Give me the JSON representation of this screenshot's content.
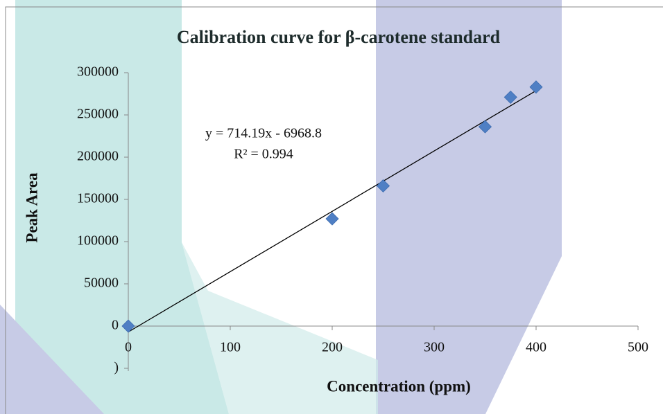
{
  "chart_data": {
    "type": "scatter",
    "title": "Calibration curve for β-carotene standard",
    "x_label": "Concentration (ppm)",
    "y_label": "Peak Area",
    "x": [
      0,
      200,
      250,
      350,
      375,
      400
    ],
    "values": [
      0,
      127000,
      166000,
      236000,
      271000,
      283000
    ],
    "color": "#4f7fc4",
    "trendline": {
      "x": [
        0,
        400
      ],
      "y": [
        -6968.8,
        278707.2
      ],
      "color": "#000000"
    },
    "annotations": [
      "y = 714.19x - 6968.8",
      "R² = 0.994"
    ],
    "xlim": [
      0,
      500
    ],
    "xticks": [
      0,
      100,
      200,
      300,
      400,
      500
    ],
    "ylim": [
      -50000,
      300000
    ],
    "yticks": [
      {
        "value": -50000,
        "label": ")"
      },
      0,
      50000,
      100000,
      150000,
      200000,
      250000,
      300000
    ],
    "grid": false
  }
}
